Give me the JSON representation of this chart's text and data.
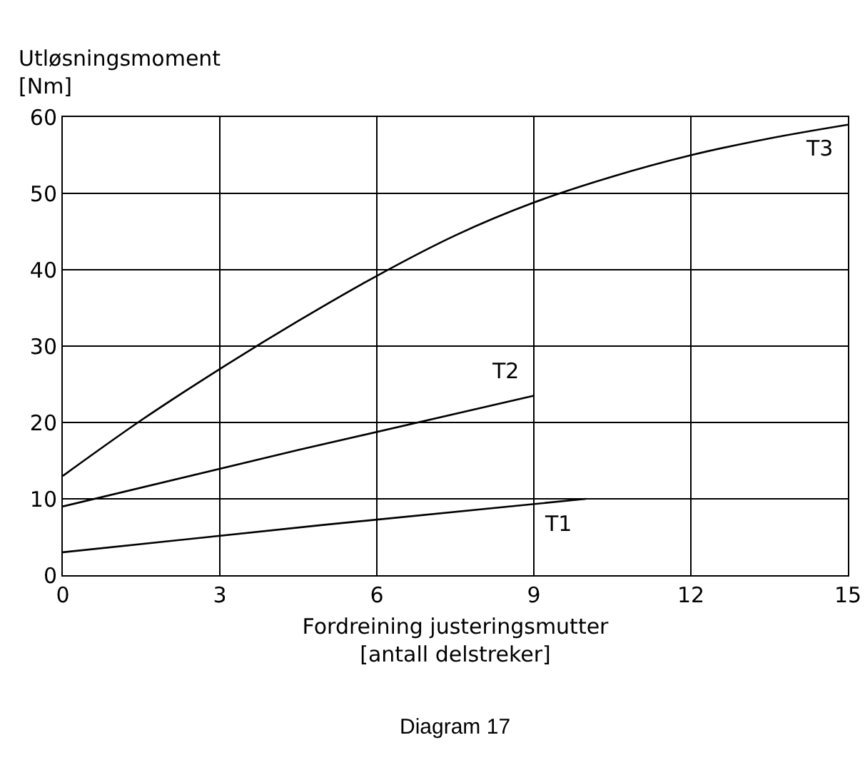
{
  "chart_data": {
    "type": "line",
    "xlabel": "Fordreining justeringsmutter\n[antall delstreker]",
    "ylabel": "Utløsningsmoment\n[Nm]",
    "annotations": [
      "Diagram 17"
    ],
    "series": [
      {
        "name": "T1",
        "color": "#000000",
        "x": [
          0,
          5,
          10
        ],
        "values": [
          3,
          6.6,
          10
        ]
      },
      {
        "name": "T2",
        "color": "#000000",
        "x": [
          0,
          4.5,
          9
        ],
        "values": [
          9,
          16.4,
          23.5
        ]
      },
      {
        "name": "T3",
        "color": "#000000",
        "x": [
          0,
          1.5,
          3,
          4.5,
          6,
          7.5,
          9,
          10.5,
          12,
          13.5,
          15
        ],
        "values": [
          13,
          20.3,
          27,
          33.3,
          39.2,
          44.5,
          48.8,
          52.2,
          55,
          57.2,
          59
        ]
      }
    ],
    "xlim": [
      0,
      15
    ],
    "xticks": [
      0,
      3,
      6,
      9,
      12,
      15
    ],
    "ylim": [
      0,
      60
    ],
    "yticks": [
      0,
      10,
      20,
      30,
      40,
      50,
      60
    ],
    "grid": true,
    "legend": false,
    "marker": "none",
    "line_style": "solid"
  }
}
